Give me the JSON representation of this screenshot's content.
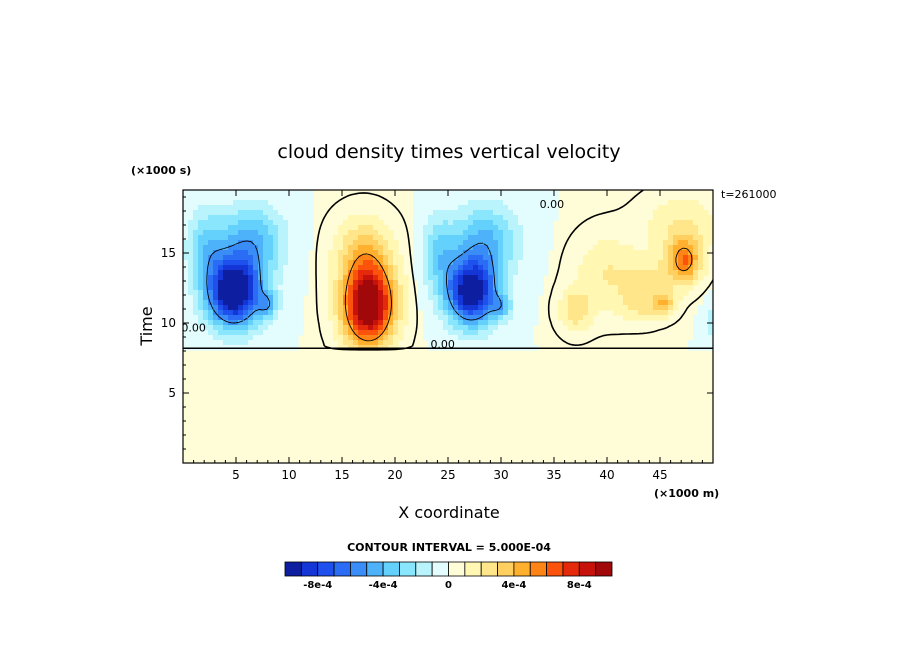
{
  "chart_data": {
    "type": "heatmap",
    "title": "cloud density times vertical velocity",
    "xlabel": "X coordinate",
    "ylabel": "Time",
    "x_units": "(×1000 m)",
    "y_units": "(×1000 s)",
    "time_stamp": "t=261000",
    "xlim": [
      0,
      50
    ],
    "ylim": [
      0,
      19.5
    ],
    "x_ticks": [
      5,
      10,
      15,
      20,
      25,
      30,
      35,
      40,
      45
    ],
    "y_ticks": [
      5,
      10,
      15
    ],
    "contour_interval_label": "CONTOUR INTERVAL = 5.000E-04",
    "zero_contour_label": "0.00",
    "zero_contour_labels_xy": [
      [
        1.0,
        9.4
      ],
      [
        24.5,
        8.2
      ],
      [
        34.8,
        18.2
      ]
    ],
    "colorbar": {
      "colors": [
        "#0d1ea0",
        "#1436d6",
        "#1e50ee",
        "#2a6cf4",
        "#3a8df7",
        "#4eb2fa",
        "#64d0fc",
        "#8ae6fd",
        "#b9f4fd",
        "#e3fcfd",
        "#fffdd8",
        "#fff7b2",
        "#ffe68a",
        "#ffd060",
        "#ffb02e",
        "#ff8416",
        "#fb520c",
        "#e42a0a",
        "#c6120a",
        "#a0080a"
      ],
      "tick_labels": [
        {
          "label": "-8e-4",
          "index": 2
        },
        {
          "label": "-4e-4",
          "index": 6
        },
        {
          "label": "0",
          "index": 10
        },
        {
          "label": "4e-4",
          "index": 14
        },
        {
          "label": "8e-4",
          "index": 18
        }
      ]
    },
    "cells": [
      {
        "name": "negative cell 1",
        "center": [
          4.8,
          12.1
        ],
        "peak": -0.0011
      },
      {
        "name": "positive cell 1",
        "center": [
          17.5,
          11.3
        ],
        "peak": 0.00105
      },
      {
        "name": "negative cell 2",
        "center": [
          27.4,
          12.2
        ],
        "peak": -0.001
      },
      {
        "name": "weak positive cell 3",
        "center": [
          41.5,
          13.0
        ],
        "peak": 0.0003
      },
      {
        "name": "positive cell 4",
        "center": [
          47.3,
          14.2
        ],
        "peak": 0.0006
      }
    ]
  }
}
